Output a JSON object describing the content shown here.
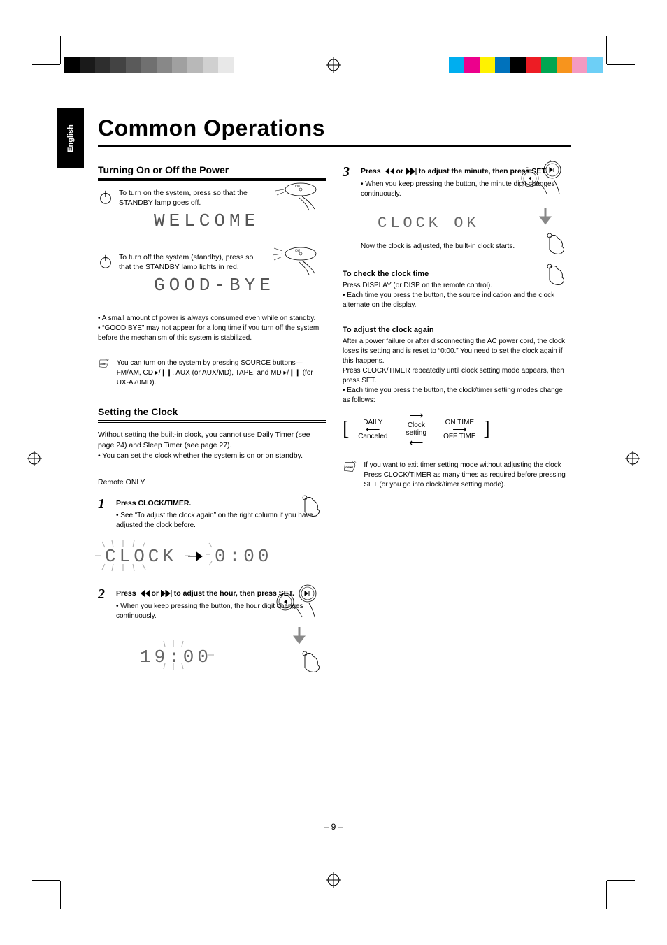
{
  "lang_tab": "English",
  "title": "Common Operations",
  "page_number": "– 9 –",
  "colors": {
    "gray_strip": [
      "#000000",
      "#1a1a1a",
      "#2e2e2e",
      "#434343",
      "#5a5a5a",
      "#707070",
      "#888888",
      "#a0a0a0",
      "#b8b8b8",
      "#d0d0d0",
      "#e8e8e8",
      "#ffffff"
    ],
    "color_strip": [
      "#00aeef",
      "#ec008c",
      "#fff200",
      "#0072bc",
      "#000000",
      "#ed1c24",
      "#00a651",
      "#f7941d",
      "#f49ac1",
      "#6dcff6"
    ]
  },
  "left": {
    "h2_power": "Turning On or Off the Power",
    "power_on": {
      "text": "To turn on the system, press       so that the STANDBY lamp goes off.",
      "display": "WELCOME"
    },
    "power_off": {
      "text": "To turn off the system (standby), press       so that the STANDBY lamp lights in red.",
      "display": "GOOD-BYE"
    },
    "standby_note": "• A small amount of power is always consumed even while on standby.\n• “GOOD BYE” may not appear for a long time if you turn off the system before the mechanism of this system is stabilized.",
    "notes_label": "You can turn on the system by pressing SOURCE buttons—\nFM/AM, CD ▸/❙❙, AUX (or AUX/MD), TAPE, and MD ▸/❙❙ (for UX-A70MD).",
    "h2_clock": "Setting the Clock",
    "clock_intro": "Without setting the built-in clock, you cannot use Daily Timer (see page 24) and Sleep Timer (see page 27).\n• You can set the clock whether the system is on or on standby.",
    "remote_only": "Remote ONLY",
    "step1": {
      "text": "Press CLOCK/TIMER.",
      "note": "• See “To adjust the clock again” on the right column if you have adjusted the clock before.",
      "disp_left": "CLOCK",
      "disp_right": "0:00"
    },
    "step2": {
      "text": "Press ❙◂◂ or ▸▸❙ to adjust the hour, then press SET.",
      "hold_note": "• When you keep pressing the button, the hour digit changes continuously.",
      "disp": "19:00"
    }
  },
  "right": {
    "step3": {
      "text": "Press ❙◂◂ or ▸▸❙ to adjust the minute, then press SET.",
      "hold_note": "• When you keep pressing the button, the minute digit changes continuously.",
      "seg": "CLOCK OK",
      "after": "Now the clock is adjusted, the built-in clock starts."
    },
    "h_check": "To check the clock time",
    "check_txt": "Press DISPLAY (or DISP on the remote control).\n• Each time you press the button, the source indication and the clock alternate on the display.",
    "h_adjust": "To adjust the clock again",
    "adjust_txt": "After a power failure or after disconnecting the AC power cord, the clock loses its setting and is reset to “0:00.” You need to set the clock again if this happens.\nPress CLOCK/TIMER repeatedly until clock setting mode appears, then press SET.\n• Each time you press the button, the clock/timer setting modes change as follows:",
    "flow": {
      "a": "DAILY",
      "b": "Clock setting",
      "c": "ON TIME",
      "d": "Canceled",
      "e": "OFF TIME"
    },
    "notes_label": "If you want to exit timer setting mode without adjusting the clock\nPress CLOCK/TIMER as many times as required before pressing SET (or you go into clock/timer setting mode)."
  }
}
